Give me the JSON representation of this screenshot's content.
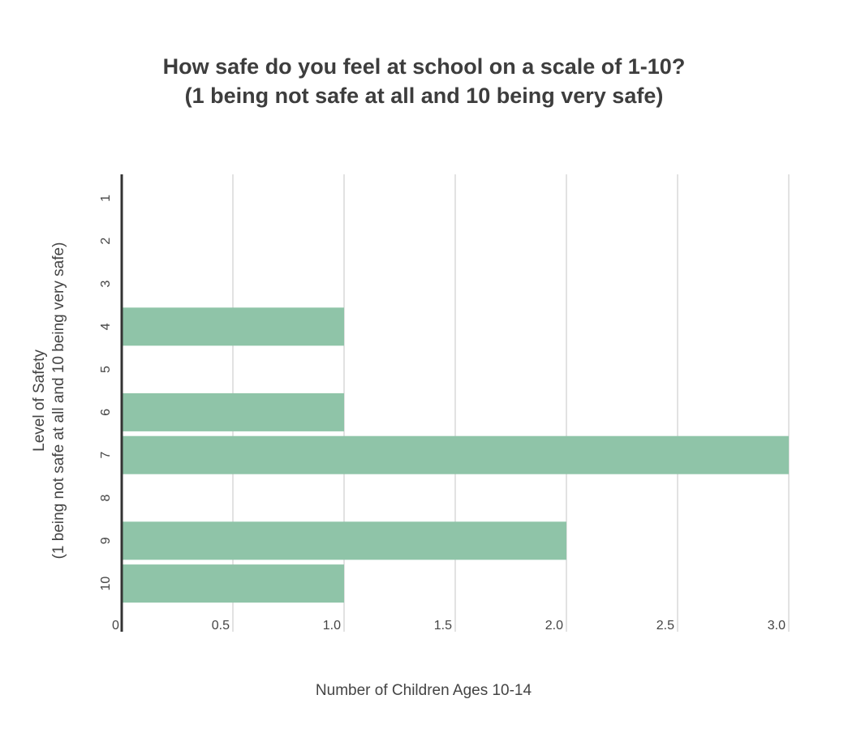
{
  "chart_data": {
    "type": "bar",
    "orientation": "horizontal",
    "title": "How safe do you feel at school on a scale of 1-10?",
    "subtitle": "(1 being not safe at all and 10 being very safe)",
    "xlabel": "Number of Children Ages 10-14",
    "ylabel": "Level of Safety",
    "ylabel_sub": "(1 being not safe at all and 10 being very safe)",
    "categories": [
      "1",
      "2",
      "3",
      "4",
      "5",
      "6",
      "7",
      "8",
      "9",
      "10"
    ],
    "values": [
      0,
      0,
      0,
      1,
      0,
      1,
      3,
      0,
      2,
      1
    ],
    "xlim": [
      0,
      3
    ],
    "xticks": [
      "0",
      "0.5",
      "1.0",
      "1.5",
      "2.0",
      "2.5",
      "3.0"
    ],
    "xtick_values": [
      0,
      0.5,
      1,
      1.5,
      2,
      2.5,
      3
    ],
    "grid": true,
    "bar_color": "#8fc4a8",
    "grid_color": "#d9d9d9",
    "axis_color": "#333333"
  }
}
